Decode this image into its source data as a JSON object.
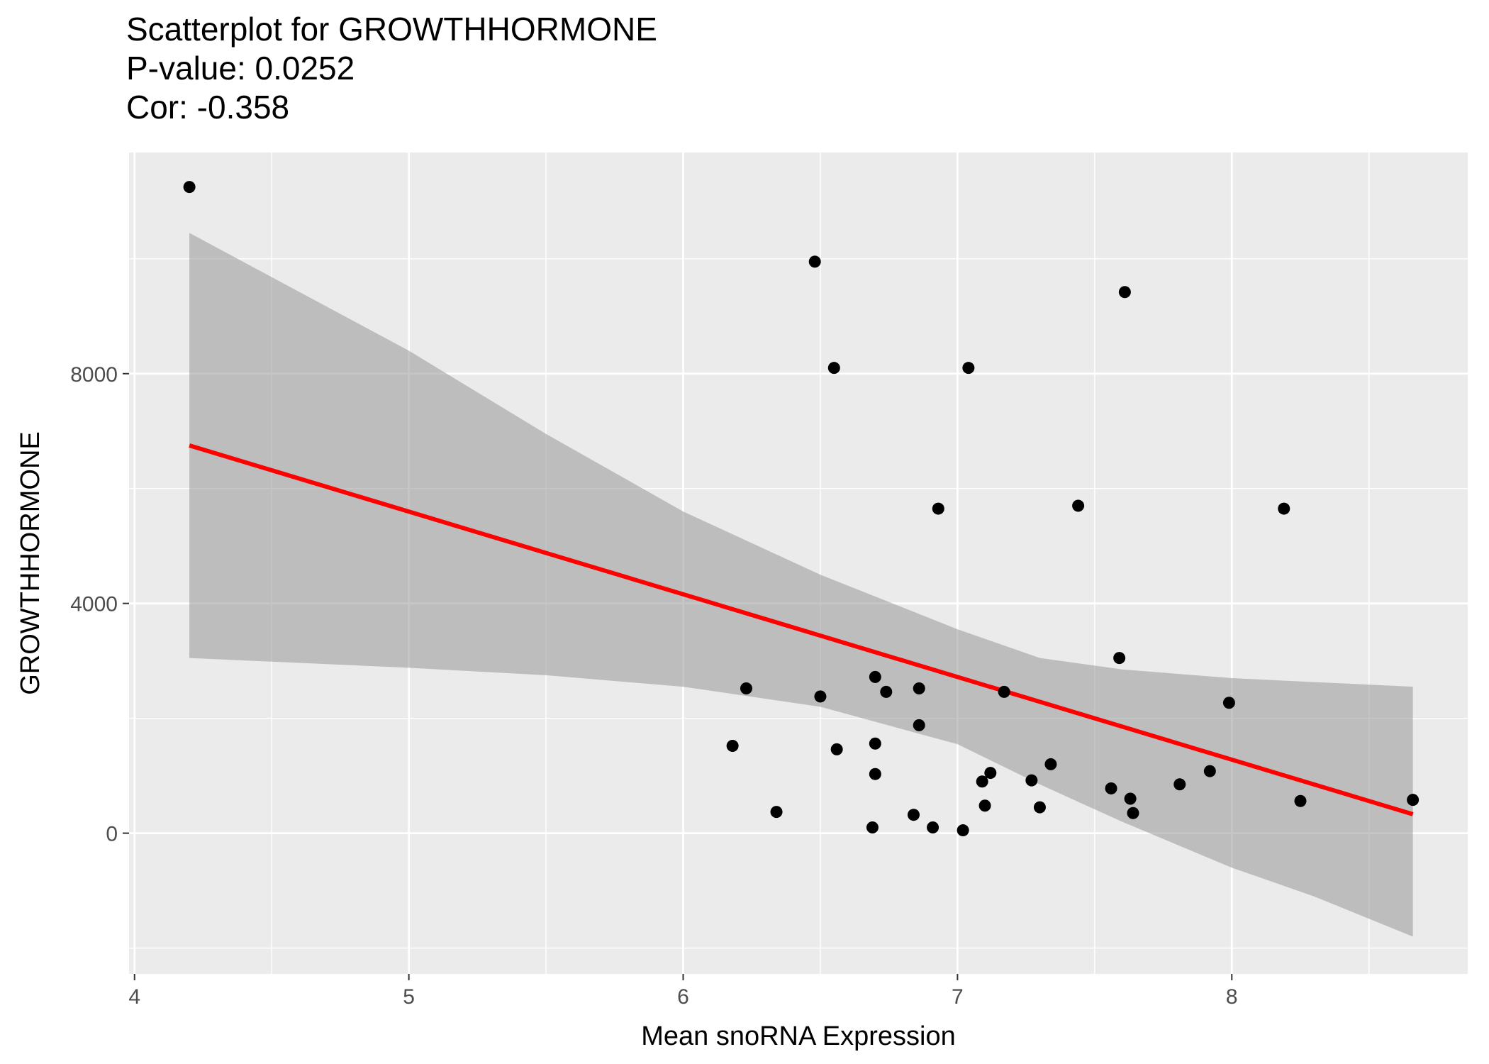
{
  "title_lines": [
    "Scatterplot for GROWTHHORMONE",
    "P-value: 0.0252",
    "Cor: -0.358"
  ],
  "chart_data": {
    "type": "scatter",
    "xlabel": "Mean snoRNA Expression",
    "ylabel": "GROWTHHORMONE",
    "xlim": [
      3.98,
      8.86
    ],
    "ylim": [
      -2450,
      11850
    ],
    "x_ticks": [
      4,
      5,
      6,
      7,
      8
    ],
    "y_ticks": [
      0,
      4000,
      8000
    ],
    "grid": true,
    "points": [
      {
        "x": 4.2,
        "y": 11250
      },
      {
        "x": 6.48,
        "y": 9950
      },
      {
        "x": 7.61,
        "y": 9420
      },
      {
        "x": 6.55,
        "y": 8100
      },
      {
        "x": 7.04,
        "y": 8100
      },
      {
        "x": 6.93,
        "y": 5650
      },
      {
        "x": 7.44,
        "y": 5700
      },
      {
        "x": 8.19,
        "y": 5650
      },
      {
        "x": 7.59,
        "y": 3050
      },
      {
        "x": 6.23,
        "y": 2520
      },
      {
        "x": 6.5,
        "y": 2380
      },
      {
        "x": 6.7,
        "y": 2720
      },
      {
        "x": 6.74,
        "y": 2460
      },
      {
        "x": 6.86,
        "y": 2520
      },
      {
        "x": 7.17,
        "y": 2460
      },
      {
        "x": 7.99,
        "y": 2270
      },
      {
        "x": 6.86,
        "y": 1880
      },
      {
        "x": 6.18,
        "y": 1520
      },
      {
        "x": 6.56,
        "y": 1460
      },
      {
        "x": 6.7,
        "y": 1560
      },
      {
        "x": 6.7,
        "y": 1030
      },
      {
        "x": 7.12,
        "y": 1050
      },
      {
        "x": 7.09,
        "y": 900
      },
      {
        "x": 7.34,
        "y": 1200
      },
      {
        "x": 7.27,
        "y": 920
      },
      {
        "x": 7.56,
        "y": 780
      },
      {
        "x": 7.81,
        "y": 850
      },
      {
        "x": 7.92,
        "y": 1080
      },
      {
        "x": 7.63,
        "y": 600
      },
      {
        "x": 6.34,
        "y": 370
      },
      {
        "x": 7.1,
        "y": 480
      },
      {
        "x": 7.3,
        "y": 450
      },
      {
        "x": 6.84,
        "y": 320
      },
      {
        "x": 7.64,
        "y": 350
      },
      {
        "x": 8.25,
        "y": 560
      },
      {
        "x": 8.66,
        "y": 580
      },
      {
        "x": 6.69,
        "y": 100
      },
      {
        "x": 6.91,
        "y": 100
      },
      {
        "x": 7.02,
        "y": 50
      }
    ],
    "fit_line": {
      "color": "#ff0000",
      "x": [
        4.2,
        8.66
      ],
      "y": [
        6750,
        330
      ]
    },
    "confidence_band": {
      "color": "#999999",
      "x": [
        4.2,
        5.0,
        5.5,
        6.0,
        6.5,
        7.0,
        7.3,
        7.6,
        8.0,
        8.3,
        8.66
      ],
      "upper": [
        10450,
        8400,
        6950,
        5600,
        4500,
        3550,
        3050,
        2850,
        2700,
        2630,
        2550
      ],
      "lower": [
        3050,
        2880,
        2750,
        2550,
        2200,
        1550,
        850,
        200,
        -600,
        -1100,
        -1800
      ]
    },
    "colors": {
      "panel": "#ebebeb",
      "grid_major": "#ffffff",
      "points": "#000000"
    }
  }
}
